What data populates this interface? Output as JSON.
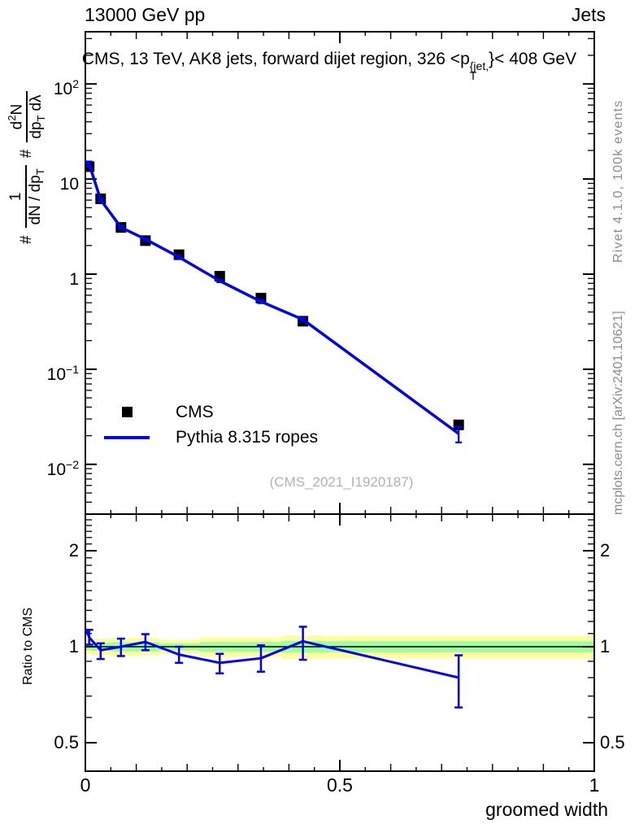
{
  "header": {
    "left": "13000 GeV pp",
    "right": "Jets"
  },
  "title": {
    "lead": "CMS, 13 TeV, AK8 jets, forward dijet region, 326 <p",
    "sup": "{jet,",
    "sub": "T",
    "tail": "}< 408 GeV"
  },
  "ylabel": {
    "hash1": "#",
    "f1_num": "1",
    "f1_den_base": "dN / dp",
    "f1_den_sub": "T",
    "hash2": "#",
    "f2_num_a": "d",
    "f2_num_sup": "2",
    "f2_num_b": "N",
    "f2_den_base": "dp",
    "f2_den_sub": "T",
    "f2_den_tail": "dλ"
  },
  "axes": {
    "main_y": [
      {
        "base": "10",
        "exp": "2"
      },
      {
        "base": "10",
        "exp": ""
      },
      {
        "base": "1",
        "exp": ""
      },
      {
        "base": "10",
        "exp": "−1"
      },
      {
        "base": "10",
        "exp": "−2"
      }
    ],
    "ratio_y": [
      "2",
      "1",
      "0.5"
    ],
    "x": [
      "0",
      "0.5",
      "1"
    ],
    "x_label": "groomed width",
    "ratio_label": "Ratio to CMS"
  },
  "legend": {
    "items": [
      {
        "label": "CMS",
        "marker": "filled-square"
      },
      {
        "label": "Pythia 8.315 ropes",
        "marker": "line"
      }
    ]
  },
  "watermark": "(CMS_2021_I1920187)",
  "side_text": {
    "rivet": "Rivet 4.1.0,  100k events",
    "mcplots": "mcplots.cern.ch [arXiv:2401.10621]"
  },
  "colors": {
    "line": "#0000ee",
    "marker": "#000000",
    "band_yellow": "#ffffa0",
    "band_green": "#a0ffa0",
    "gray_text": "#8c8c8c",
    "watermark": "#b3b3b3"
  },
  "chart_data": {
    "type": "line",
    "title": "CMS, 13 TeV, AK8 jets, forward dijet region, 326 < pT^jet < 408 GeV",
    "xlabel": "groomed width",
    "ylabel": "# 1/(dN/dpT) # d2N/(dpT dλ)",
    "xlim": [
      0,
      1
    ],
    "ylog": true,
    "ylim": [
      0.003,
      350
    ],
    "legend_position": "left-middle",
    "x": [
      0.0075,
      0.03,
      0.07,
      0.118,
      0.184,
      0.264,
      0.345,
      0.4275,
      0.7335
    ],
    "lead_x": 0.001,
    "series": [
      {
        "name": "CMS",
        "type": "points",
        "marker": "filled-square",
        "values": [
          13.5,
          6.2,
          3.1,
          2.25,
          1.6,
          0.95,
          0.56,
          0.32,
          0.026
        ],
        "errors": [
          0.5,
          0.2,
          0.09,
          0.06,
          0.045,
          0.03,
          0.018,
          0.012,
          0.0025
        ]
      },
      {
        "name": "Pythia 8.315 ropes",
        "type": "line",
        "values": [
          14.4,
          6.05,
          3.1,
          2.33,
          1.51,
          0.85,
          0.515,
          0.333,
          0.021
        ],
        "errors": [
          0.9,
          0.22,
          0.1,
          0.07,
          0.05,
          0.028,
          0.02,
          0.016,
          0.004
        ],
        "lead_value": 14.8
      }
    ],
    "ratio": {
      "label": "Ratio to CMS",
      "ylim": [
        0.407,
        2.6
      ],
      "tick_values": [
        0.5,
        1,
        2
      ],
      "values": [
        1.07,
        0.975,
        1.0,
        1.035,
        0.945,
        0.89,
        0.92,
        1.04,
        0.8
      ],
      "err_up": [
        0.06,
        0.05,
        0.06,
        0.06,
        0.055,
        0.06,
        0.09,
        0.115,
        0.14
      ],
      "err_dn": [
        0.055,
        0.06,
        0.065,
        0.06,
        0.055,
        0.065,
        0.085,
        0.13,
        0.155
      ],
      "lead_value": 1.135,
      "bands": {
        "edges": [
          0,
          0.01,
          0.05,
          0.09,
          0.145,
          0.225,
          0.305,
          0.385,
          0.47,
          1.0
        ],
        "yellow": [
          0.05,
          0.06,
          0.065,
          0.065,
          0.05,
          0.07,
          0.07,
          0.085,
          0.08
        ],
        "green": [
          0.025,
          0.03,
          0.033,
          0.033,
          0.025,
          0.035,
          0.035,
          0.042,
          0.04
        ]
      }
    }
  }
}
